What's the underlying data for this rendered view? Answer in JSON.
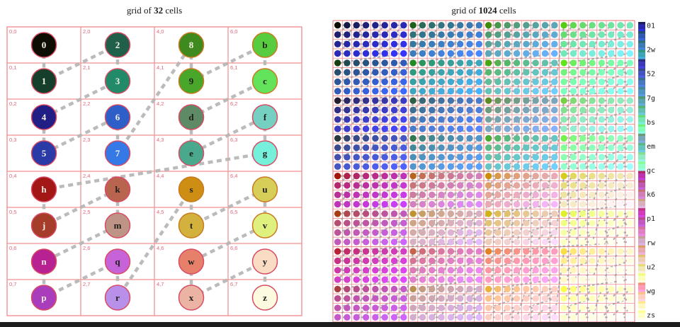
{
  "left_panel": {
    "title": {
      "prefix": "grid of ",
      "count": "32",
      "suffix": " cells"
    },
    "grid_cols": 4,
    "grid_rows": 8,
    "sequence": [
      "0",
      "1",
      "2",
      "3",
      "4",
      "5",
      "6",
      "7",
      "8",
      "9",
      "b",
      "c",
      "d",
      "e",
      "f",
      "g",
      "h",
      "j",
      "k",
      "m",
      "n",
      "p",
      "q",
      "r",
      "s",
      "t",
      "u",
      "v",
      "w",
      "x",
      "y",
      "z"
    ],
    "cells": [
      {
        "digit": "0",
        "coord": "0,0",
        "col": 0,
        "row": 0,
        "fill": "#0d0d04",
        "border": "#d94a63"
      },
      {
        "digit": "1",
        "coord": "0,1",
        "col": 0,
        "row": 1,
        "fill": "#153f2b",
        "border": "#d94a63"
      },
      {
        "digit": "2",
        "coord": "2,0",
        "col": 1,
        "row": 0,
        "fill": "#20604a",
        "border": "#d94a63"
      },
      {
        "digit": "3",
        "coord": "2,1",
        "col": 1,
        "row": 1,
        "fill": "#218a69",
        "border": "#d94a63"
      },
      {
        "digit": "4",
        "coord": "0,2",
        "col": 0,
        "row": 2,
        "fill": "#211e86",
        "border": "#d94a63"
      },
      {
        "digit": "5",
        "coord": "0,3",
        "col": 0,
        "row": 3,
        "fill": "#2a3aa6",
        "border": "#d94a63"
      },
      {
        "digit": "6",
        "coord": "2,2",
        "col": 1,
        "row": 2,
        "fill": "#2e5ec8",
        "border": "#d94a63"
      },
      {
        "digit": "7",
        "coord": "2,3",
        "col": 1,
        "row": 3,
        "fill": "#3579e6",
        "border": "#d94a63"
      },
      {
        "digit": "8",
        "coord": "4,0",
        "col": 2,
        "row": 0,
        "fill": "#3f8a1e",
        "border": "#c97a1f"
      },
      {
        "digit": "9",
        "coord": "4,1",
        "col": 2,
        "row": 1,
        "fill": "#48a62b",
        "border": "#c97a1f"
      },
      {
        "digit": "b",
        "coord": "6,0",
        "col": 3,
        "row": 0,
        "fill": "#57cc3e",
        "border": "#c97a1f"
      },
      {
        "digit": "c",
        "coord": "6,1",
        "col": 3,
        "row": 1,
        "fill": "#63e35c",
        "border": "#c97a1f"
      },
      {
        "digit": "d",
        "coord": "4,2",
        "col": 2,
        "row": 2,
        "fill": "#5e8a66",
        "border": "#d94a63"
      },
      {
        "digit": "e",
        "coord": "4,3",
        "col": 2,
        "row": 3,
        "fill": "#4aa98c",
        "border": "#d94a63"
      },
      {
        "digit": "f",
        "coord": "6,2",
        "col": 3,
        "row": 2,
        "fill": "#75d0c2",
        "border": "#d94a63"
      },
      {
        "digit": "g",
        "coord": "6,3",
        "col": 3,
        "row": 3,
        "fill": "#76f0da",
        "border": "#d94a63"
      },
      {
        "digit": "h",
        "coord": "0,4",
        "col": 0,
        "row": 4,
        "fill": "#a41717",
        "border": "#d94a63"
      },
      {
        "digit": "j",
        "coord": "0,5",
        "col": 0,
        "row": 5,
        "fill": "#a53d2a",
        "border": "#d94a63"
      },
      {
        "digit": "k",
        "coord": "2,4",
        "col": 1,
        "row": 4,
        "fill": "#b8644f",
        "border": "#d94a63"
      },
      {
        "digit": "m",
        "coord": "2,5",
        "col": 1,
        "row": 5,
        "fill": "#bd9486",
        "border": "#d94a63"
      },
      {
        "digit": "n",
        "coord": "0,6",
        "col": 0,
        "row": 6,
        "fill": "#b82191",
        "border": "#d94a63"
      },
      {
        "digit": "p",
        "coord": "0,7",
        "col": 0,
        "row": 7,
        "fill": "#a93dbb",
        "border": "#d94a63"
      },
      {
        "digit": "q",
        "coord": "2,6",
        "col": 1,
        "row": 6,
        "fill": "#c763d8",
        "border": "#d94a63"
      },
      {
        "digit": "r",
        "coord": "2,7",
        "col": 1,
        "row": 7,
        "fill": "#b890e9",
        "border": "#d94a63"
      },
      {
        "digit": "s",
        "coord": "4,4",
        "col": 2,
        "row": 4,
        "fill": "#cd8e13",
        "border": "#c97a1f"
      },
      {
        "digit": "t",
        "coord": "4,5",
        "col": 2,
        "row": 5,
        "fill": "#d2b23c",
        "border": "#c97a1f"
      },
      {
        "digit": "u",
        "coord": "6,4",
        "col": 3,
        "row": 4,
        "fill": "#d7cd59",
        "border": "#c97a1f"
      },
      {
        "digit": "v",
        "coord": "6,5",
        "col": 3,
        "row": 5,
        "fill": "#dff07f",
        "border": "#c97a1f"
      },
      {
        "digit": "w",
        "coord": "4,6",
        "col": 2,
        "row": 6,
        "fill": "#e6806b",
        "border": "#d94a63"
      },
      {
        "digit": "x",
        "coord": "4,7",
        "col": 2,
        "row": 7,
        "fill": "#ebb3a3",
        "border": "#d94a63"
      },
      {
        "digit": "y",
        "coord": "6,6",
        "col": 3,
        "row": 6,
        "fill": "#fadcc4",
        "border": "#d94a63"
      },
      {
        "digit": "z",
        "coord": "6,7",
        "col": 3,
        "row": 7,
        "fill": "#fcfbe0",
        "border": "#d94a63"
      }
    ]
  },
  "right_panel": {
    "title": {
      "prefix": "grid of ",
      "count": "1024",
      "suffix": " cells"
    },
    "grid_size": 32,
    "colorbar_labels": [
      "01",
      "2w",
      "52",
      "7g",
      "bs",
      "em",
      "gc",
      "k6",
      "p1",
      "rw",
      "u2",
      "wg",
      "zs"
    ]
  },
  "colors": {
    "grid_line": "#f29a9a",
    "right_grid_line": "#ee8b8b",
    "connector": "#b5b5b5",
    "right_connector": "#9a9a9a",
    "cell_label": "#e0667a",
    "title_text": "#1c1c1c",
    "colorbar_label_text": "#222222",
    "bottom_bar": "#1d1d1d",
    "background": "#ffffff"
  }
}
